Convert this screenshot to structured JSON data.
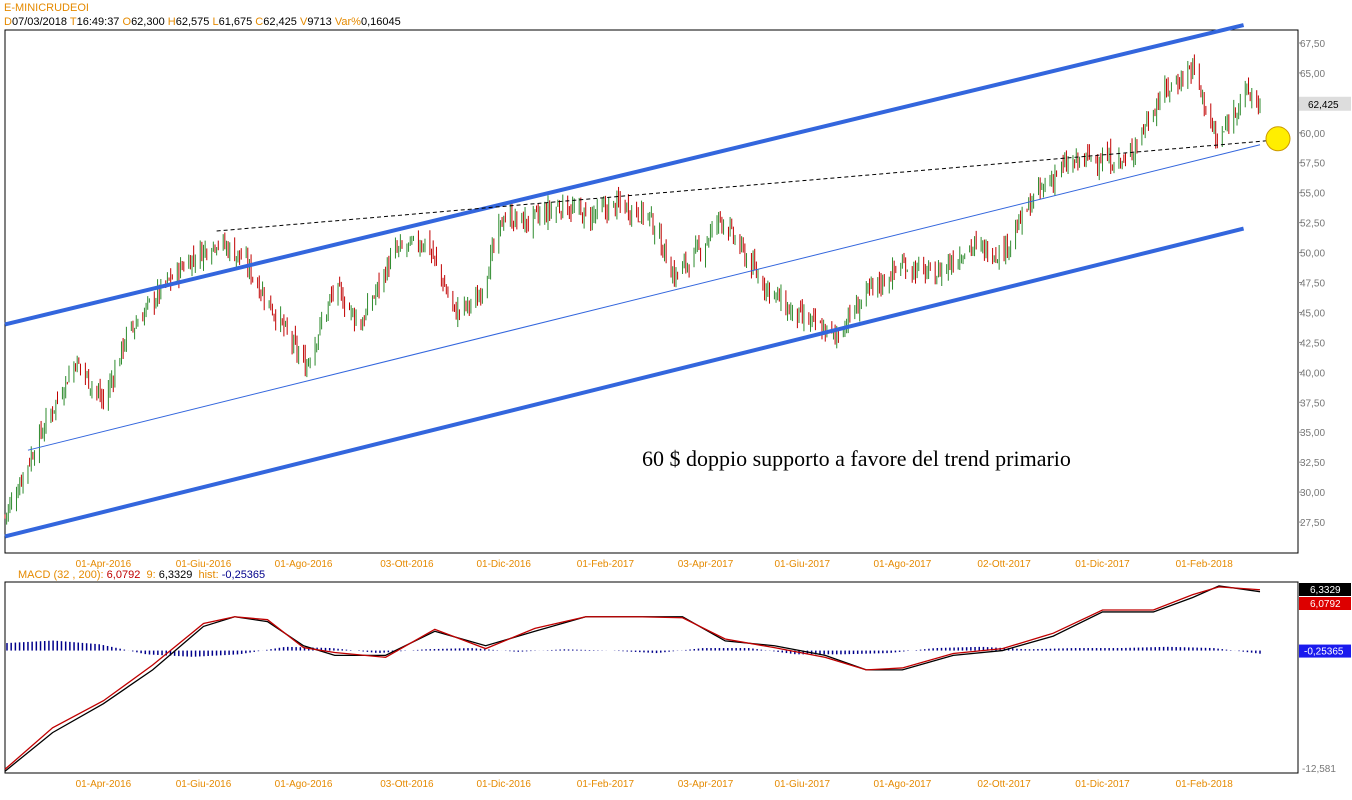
{
  "header": {
    "symbol": "E-MINICRUDEOI",
    "quote": [
      {
        "key": "D",
        "value": "07/03/2018"
      },
      {
        "key": "T",
        "value": "16:49:37"
      },
      {
        "key": "O",
        "value": "62,300"
      },
      {
        "key": "H",
        "value": "62,575"
      },
      {
        "key": "L",
        "value": "61,675"
      },
      {
        "key": "C",
        "value": "62,425"
      },
      {
        "key": "V",
        "value": "9713"
      },
      {
        "key": "Var%",
        "value": "0,16045"
      }
    ]
  },
  "colors": {
    "up": "#2e8b2e",
    "down": "#c00000",
    "channel": "#3366dd",
    "axis_text": "#e58a00",
    "macd_line": "#000000",
    "signal_line": "#c00000",
    "hist": "#00008b",
    "highlight": "#ffee00"
  },
  "chart_data": [
    {
      "type": "candlestick",
      "title": "E-MINICRUDEOI",
      "annotation": "60 $ doppio supporto a favore del trend primario",
      "last_value_label": "62,425",
      "ylim": [
        25.0,
        68.5
      ],
      "y_ticks": [
        "67,50",
        "65,00",
        "62,50",
        "60,00",
        "57,50",
        "55,00",
        "52,50",
        "50,00",
        "47,50",
        "45,00",
        "42,50",
        "40,00",
        "37,50",
        "35,00",
        "32,50",
        "30,00",
        "27,50"
      ],
      "x_ticks": [
        "01-Apr-2016",
        "01-Giu-2016",
        "01-Ago-2016",
        "03-Ott-2016",
        "01-Dic-2016",
        "01-Feb-2017",
        "03-Apr-2017",
        "01-Giu-2017",
        "01-Ago-2017",
        "02-Ott-2017",
        "01-Dic-2017",
        "01-Feb-2018"
      ],
      "x_range": [
        "2016-02-01",
        "2018-03-07"
      ],
      "series": [
        {
          "x": [
            "2016-02-01",
            "2016-02-20",
            "2016-03-15",
            "2016-04-01",
            "2016-04-15",
            "2016-05-01",
            "2016-05-20",
            "2016-06-09",
            "2016-06-25",
            "2016-07-10",
            "2016-08-02",
            "2016-08-20",
            "2016-09-05",
            "2016-09-25",
            "2016-10-15",
            "2016-11-01",
            "2016-11-15",
            "2016-12-01",
            "2016-12-15",
            "2017-01-06",
            "2017-01-20",
            "2017-02-10",
            "2017-02-28",
            "2017-03-15",
            "2017-04-01",
            "2017-04-12",
            "2017-05-05",
            "2017-05-25",
            "2017-06-21",
            "2017-07-10",
            "2017-08-01",
            "2017-08-20",
            "2017-09-10",
            "2017-10-01",
            "2017-10-20",
            "2017-11-05",
            "2017-11-25",
            "2017-12-15",
            "2018-01-05",
            "2018-01-25",
            "2018-02-09",
            "2018-02-25",
            "2018-03-07"
          ],
          "close": [
            28.0,
            34.0,
            41.0,
            37.5,
            43.0,
            46.0,
            49.0,
            51.0,
            49.5,
            46.0,
            40.5,
            47.0,
            44.0,
            50.0,
            51.0,
            45.0,
            46.0,
            53.0,
            52.5,
            54.0,
            53.0,
            54.0,
            53.0,
            48.0,
            50.5,
            53.0,
            48.0,
            45.0,
            43.0,
            46.5,
            49.0,
            48.0,
            50.5,
            50.0,
            54.5,
            57.0,
            58.0,
            57.5,
            63.0,
            65.5,
            59.0,
            63.5,
            62.4
          ]
        }
      ],
      "channel_lines": [
        {
          "name": "upper",
          "points": [
            [
              "2016-02-01",
              44.0
            ],
            [
              "2018-02-25",
              69.0
            ]
          ]
        },
        {
          "name": "middle",
          "points": [
            [
              "2016-02-15",
              33.5
            ],
            [
              "2018-03-07",
              59.0
            ]
          ]
        },
        {
          "name": "lower",
          "points": [
            [
              "2016-02-01",
              26.3
            ],
            [
              "2018-02-25",
              52.0
            ]
          ]
        }
      ],
      "trendline_dashed": {
        "points": [
          [
            "2016-06-09",
            51.8
          ],
          [
            "2018-03-07",
            59.5
          ]
        ]
      },
      "highlight_point": {
        "x": "2018-03-07",
        "y": 59.5
      }
    },
    {
      "type": "line",
      "title": "MACD",
      "params": "(32 , 200)",
      "macd_value": "6,0792",
      "signal_period": "9",
      "signal_value": "6,3329",
      "hist_label": "hist",
      "hist_value": "-0,25365",
      "right_labels": {
        "top": "6,3329",
        "second": "6,0792",
        "hist": "-0,25365",
        "bottom": "-12,581"
      },
      "ylim": [
        -12.581,
        7.0
      ],
      "series": [
        {
          "name": "MACD",
          "x": [
            "2016-02-01",
            "2016-03-01",
            "2016-04-01",
            "2016-05-01",
            "2016-06-01",
            "2016-06-20",
            "2016-07-10",
            "2016-08-01",
            "2016-08-20",
            "2016-09-20",
            "2016-10-20",
            "2016-11-20",
            "2016-12-20",
            "2017-01-20",
            "2017-02-20",
            "2017-03-20",
            "2017-04-15",
            "2017-05-15",
            "2017-06-15",
            "2017-07-10",
            "2017-08-01",
            "2017-09-01",
            "2017-10-01",
            "2017-11-01",
            "2017-12-01",
            "2018-01-01",
            "2018-01-25",
            "2018-02-10",
            "2018-03-07"
          ],
          "values": [
            -12.5,
            -8.5,
            -5.5,
            -2.0,
            2.5,
            3.5,
            3.0,
            0.5,
            -0.5,
            -0.5,
            2.0,
            0.5,
            2.0,
            3.5,
            3.5,
            3.5,
            1.0,
            0.5,
            -0.5,
            -2.0,
            -2.0,
            -0.5,
            0.0,
            1.5,
            4.0,
            4.0,
            5.5,
            6.7,
            6.1
          ]
        },
        {
          "name": "Signal",
          "x": [
            "2016-02-01",
            "2016-03-01",
            "2016-04-01",
            "2016-05-01",
            "2016-06-01",
            "2016-06-20",
            "2016-07-10",
            "2016-08-01",
            "2016-08-20",
            "2016-09-20",
            "2016-10-20",
            "2016-11-20",
            "2016-12-20",
            "2017-01-20",
            "2017-02-20",
            "2017-03-20",
            "2017-04-15",
            "2017-05-15",
            "2017-06-15",
            "2017-07-10",
            "2017-08-01",
            "2017-09-01",
            "2017-10-01",
            "2017-11-01",
            "2017-12-01",
            "2018-01-01",
            "2018-01-25",
            "2018-02-10",
            "2018-03-07"
          ],
          "values": [
            -12.3,
            -8.0,
            -5.2,
            -1.5,
            2.8,
            3.5,
            3.2,
            0.3,
            -0.2,
            -0.7,
            2.2,
            0.2,
            2.3,
            3.5,
            3.5,
            3.4,
            1.2,
            0.3,
            -0.7,
            -2.0,
            -1.8,
            -0.3,
            0.2,
            1.8,
            4.2,
            4.2,
            5.8,
            6.6,
            6.3
          ]
        }
      ],
      "hist_values": [
        0.6,
        0.8,
        0.5,
        -0.3,
        -0.5,
        -0.3,
        0.3,
        0.2,
        -0.2,
        0.1,
        0.2,
        -0.1,
        0.1,
        0.0,
        -0.2,
        0.2,
        0.2,
        -0.3,
        -0.3,
        -0.2,
        0.2,
        0.3,
        0.1,
        0.2,
        0.2,
        0.3,
        0.2,
        -0.25
      ]
    }
  ]
}
